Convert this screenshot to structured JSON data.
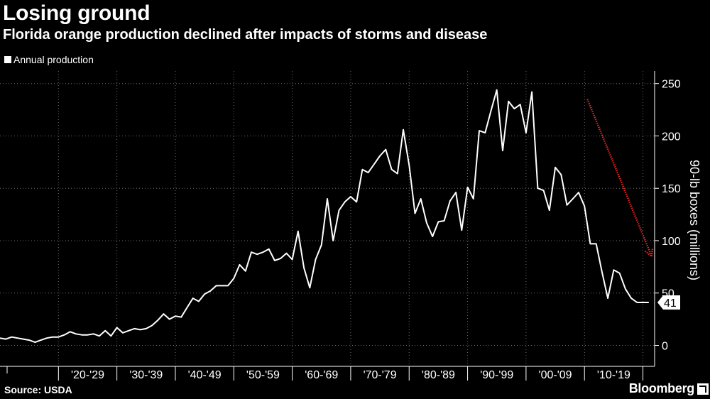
{
  "chart_data": {
    "type": "line",
    "title": "Losing ground",
    "subtitle": "Florida orange production declined after impacts of storms and disease",
    "legend": [
      "Annual production"
    ],
    "ylabel": "90-lb boxes (millions)",
    "ylim": [
      -20,
      262
    ],
    "yticks": [
      0,
      50,
      100,
      150,
      200,
      250
    ],
    "xlim": [
      1910,
      2022
    ],
    "xtick_labels": [
      "'20-'29",
      "'30-'39",
      "'40-'49",
      "'50-'59",
      "'60-'69",
      "'70-'79",
      "'80-'89",
      "'90-'99",
      "'00-'09",
      "'10-'19"
    ],
    "last_value_label": "41",
    "series": [
      {
        "name": "Annual production",
        "x": [
          1910,
          1911,
          1912,
          1913,
          1914,
          1915,
          1916,
          1917,
          1918,
          1919,
          1920,
          1921,
          1922,
          1923,
          1924,
          1925,
          1926,
          1927,
          1928,
          1929,
          1930,
          1931,
          1932,
          1933,
          1934,
          1935,
          1936,
          1937,
          1938,
          1939,
          1940,
          1941,
          1942,
          1943,
          1944,
          1945,
          1946,
          1947,
          1948,
          1949,
          1950,
          1951,
          1952,
          1953,
          1954,
          1955,
          1956,
          1957,
          1958,
          1959,
          1960,
          1961,
          1962,
          1963,
          1964,
          1965,
          1966,
          1967,
          1968,
          1969,
          1970,
          1971,
          1972,
          1973,
          1974,
          1975,
          1976,
          1977,
          1978,
          1979,
          1980,
          1981,
          1982,
          1983,
          1984,
          1985,
          1986,
          1987,
          1988,
          1989,
          1990,
          1991,
          1992,
          1993,
          1994,
          1995,
          1996,
          1997,
          1998,
          1999,
          2000,
          2001,
          2002,
          2003,
          2004,
          2005,
          2006,
          2007,
          2008,
          2009,
          2010,
          2011,
          2012,
          2013,
          2014,
          2015,
          2016,
          2017,
          2018,
          2019,
          2020,
          2021
        ],
        "values": [
          7,
          6,
          8,
          7,
          6,
          5,
          3,
          5,
          7,
          8,
          8,
          10,
          13,
          11,
          10,
          10,
          11,
          9,
          14,
          9,
          17,
          12,
          14,
          16,
          15,
          16,
          19,
          24,
          30,
          25,
          28,
          27,
          36,
          45,
          42,
          49,
          52,
          57,
          57,
          57,
          64,
          77,
          71,
          89,
          87,
          89,
          92,
          81,
          83,
          88,
          82,
          109,
          74,
          55,
          82,
          96,
          140,
          100,
          129,
          137,
          142,
          137,
          168,
          165,
          173,
          181,
          187,
          168,
          164,
          206,
          172,
          126,
          140,
          117,
          104,
          118,
          119,
          138,
          146,
          110,
          151,
          140,
          205,
          203,
          224,
          244,
          186,
          233,
          226,
          230,
          203,
          242,
          150,
          148,
          129,
          170,
          163,
          134,
          140,
          146,
          133,
          97,
          97,
          70,
          45,
          72,
          69,
          54,
          45,
          41,
          41,
          41
        ]
      }
    ],
    "annotations": [
      {
        "type": "trend-arrow",
        "color": "#e8231f",
        "from": [
          2010.5,
          235
        ],
        "to": [
          2021.5,
          85
        ]
      }
    ],
    "source": "Source: USDA",
    "brand": "Bloomberg",
    "colors": {
      "background": "#000000",
      "line": "#ffffff",
      "grid": "#6e6e6e",
      "arrow": "#e8231f"
    }
  }
}
